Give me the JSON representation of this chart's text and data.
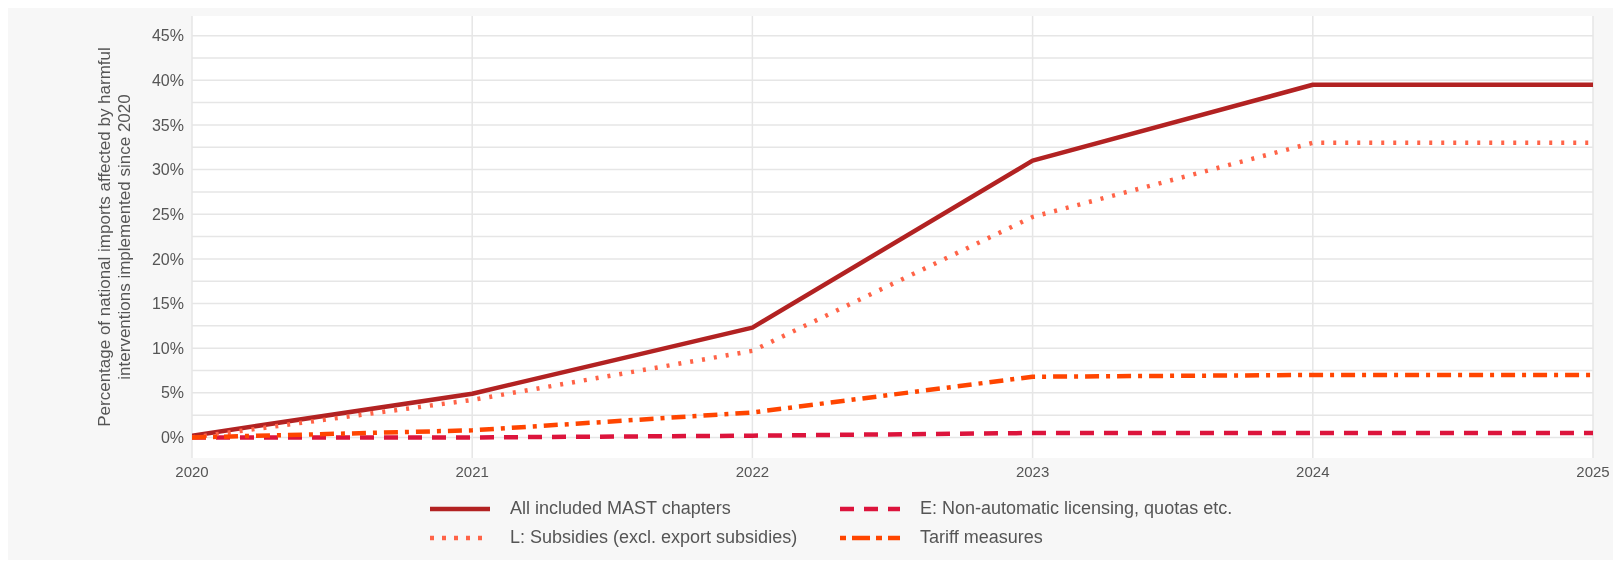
{
  "chart_data": {
    "type": "line",
    "ylabel": "Percentage of national imports affected by harmful\ninterventions implemented since 2020",
    "x": [
      2020,
      2021,
      2022,
      2023,
      2024,
      2025
    ],
    "series": [
      {
        "name": "All included MAST chapters",
        "color": "#b22222",
        "line_style": "solid",
        "values": [
          0.2,
          4.9,
          12.3,
          31,
          39.5,
          39.5
        ]
      },
      {
        "name": "E: Non-automatic licensing, quotas etc.",
        "color": "#dc143c",
        "line_style": "dashed",
        "values": [
          0,
          0,
          0.2,
          0.5,
          0.5,
          0.5
        ]
      },
      {
        "name": "L: Subsidies (excl. export subsidies)",
        "color": "#ff6347",
        "line_style": "dotted",
        "values": [
          0,
          4.2,
          9.7,
          24.7,
          33,
          33
        ]
      },
      {
        "name": "Tariff measures",
        "color": "#ff4500",
        "line_style": "dashdot",
        "values": [
          0,
          0.8,
          2.8,
          6.8,
          7,
          7
        ]
      }
    ],
    "xlim": [
      2020,
      2025
    ],
    "xticks": [
      2020,
      2021,
      2022,
      2023,
      2024,
      2025
    ],
    "ylim": [
      -2.3,
      47.2
    ],
    "yticks": [
      {
        "value": 0,
        "label": "0%"
      },
      {
        "value": 2.5,
        "label": null
      },
      {
        "value": 5,
        "label": "5%"
      },
      {
        "value": 7.5,
        "label": null
      },
      {
        "value": 10,
        "label": "10%"
      },
      {
        "value": 12.5,
        "label": null
      },
      {
        "value": 15,
        "label": "15%"
      },
      {
        "value": 17.5,
        "label": null
      },
      {
        "value": 20,
        "label": "20%"
      },
      {
        "value": 22.5,
        "label": null
      },
      {
        "value": 25,
        "label": "25%"
      },
      {
        "value": 27.5,
        "label": null
      },
      {
        "value": 30,
        "label": "30%"
      },
      {
        "value": 32.5,
        "label": null
      },
      {
        "value": 35,
        "label": "35%"
      },
      {
        "value": 37.5,
        "label": null
      },
      {
        "value": 40,
        "label": "40%"
      },
      {
        "value": 42.5,
        "label": null
      },
      {
        "value": 45,
        "label": "45%"
      }
    ],
    "grid": true,
    "legend": "bottom",
    "marker": "none"
  }
}
